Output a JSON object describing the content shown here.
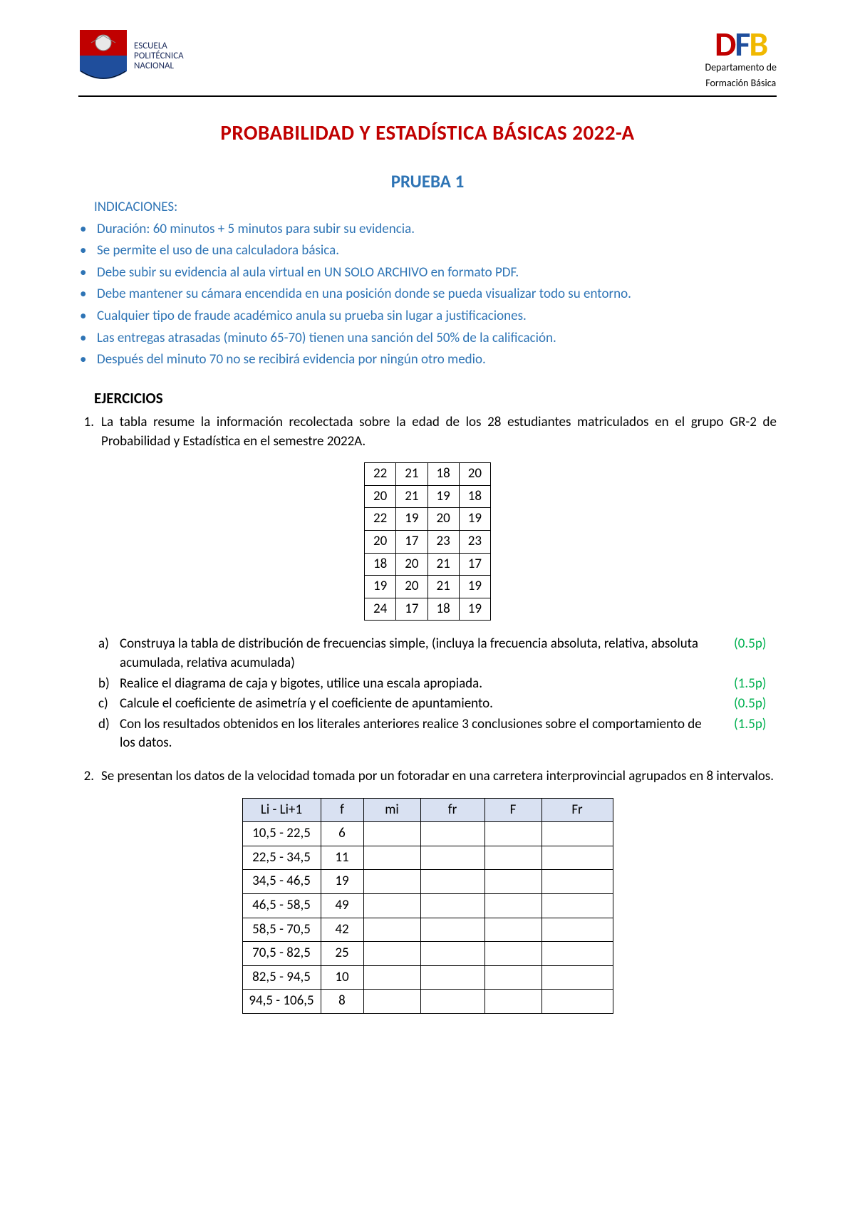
{
  "header": {
    "left_logo_text_line1": "ESCUELA",
    "left_logo_text_line2": "POLITÉCNICA",
    "left_logo_text_line3": "NACIONAL",
    "right_logo_letters": [
      "D",
      "F",
      "B"
    ],
    "right_logo_sub1": "Departamento de",
    "right_logo_sub2": "Formación Básica"
  },
  "titles": {
    "main": "PROBABILIDAD Y ESTADÍSTICA BÁSICAS 2022-A",
    "sub": "PRUEBA 1",
    "indicaciones": "INDICACIONES:",
    "ejercicios": "EJERCICIOS"
  },
  "indications": [
    "Duración: 60 minutos + 5 minutos para subir su evidencia.",
    "Se permite el uso de una calculadora básica.",
    "Debe subir su evidencia al aula virtual en UN SOLO ARCHIVO en formato PDF.",
    "Debe mantener su cámara encendida en una posición donde se pueda visualizar todo su entorno.",
    "Cualquier tipo de fraude académico anula su prueba sin lugar a justificaciones.",
    "Las entregas atrasadas (minuto 65-70) tienen una sanción del 50% de la calificación.",
    "Después del minuto 70 no se recibirá evidencia por ningún otro medio."
  ],
  "ex1": {
    "num": "1.",
    "text": "La tabla resume la información recolectada sobre la edad de los 28 estudiantes matriculados en el grupo GR-2 de Probabilidad y Estadística en el semestre 2022A.",
    "table": {
      "rows": [
        [
          "22",
          "21",
          "18",
          "20"
        ],
        [
          "20",
          "21",
          "19",
          "18"
        ],
        [
          "22",
          "19",
          "20",
          "19"
        ],
        [
          "20",
          "17",
          "23",
          "23"
        ],
        [
          "18",
          "20",
          "21",
          "17"
        ],
        [
          "19",
          "20",
          "21",
          "19"
        ],
        [
          "24",
          "17",
          "18",
          "19"
        ]
      ]
    },
    "subs": {
      "a": {
        "marker": "a)",
        "text": "Construya la tabla de distribución de frecuencias simple, (incluya la frecuencia absoluta, relativa, absoluta acumulada, relativa acumulada)",
        "points": "(0.5p)"
      },
      "b": {
        "marker": "b)",
        "text": "Realice el diagrama de caja y bigotes, utilice una escala apropiada.",
        "points": "(1.5p)"
      },
      "c": {
        "marker": "c)",
        "text": "Calcule el coeficiente de asimetría y el coeficiente de apuntamiento.",
        "points": "(0.5p)"
      },
      "d": {
        "marker": "d)",
        "text": "Con los resultados obtenidos en los literales anteriores realice 3 conclusiones sobre el comportamiento de los datos.",
        "points": "(1.5p)"
      }
    }
  },
  "ex2": {
    "num": "2.",
    "text": "Se presentan los datos de la velocidad tomada por un fotoradar en una carretera interprovincial agrupados en 8 intervalos.",
    "table": {
      "headers": [
        "Li - Li+1",
        "f",
        "mi",
        "fr",
        "F",
        "Fr"
      ],
      "rows": [
        [
          "10,5 - 22,5",
          "6",
          "",
          "",
          "",
          ""
        ],
        [
          "22,5 - 34,5",
          "11",
          "",
          "",
          "",
          ""
        ],
        [
          "34,5 - 46,5",
          "19",
          "",
          "",
          "",
          ""
        ],
        [
          "46,5 - 58,5",
          "49",
          "",
          "",
          "",
          ""
        ],
        [
          "58,5 - 70,5",
          "42",
          "",
          "",
          "",
          ""
        ],
        [
          "70,5 - 82,5",
          "25",
          "",
          "",
          "",
          ""
        ],
        [
          "82,5 - 94,5",
          "10",
          "",
          "",
          "",
          ""
        ],
        [
          "94,5 - 106,5",
          "8",
          "",
          "",
          "",
          ""
        ]
      ]
    }
  },
  "colors": {
    "title_red": "#c00000",
    "blue_text": "#2e74b5",
    "points_green": "#00b050",
    "table_header_bg": "#d9e1f2"
  }
}
